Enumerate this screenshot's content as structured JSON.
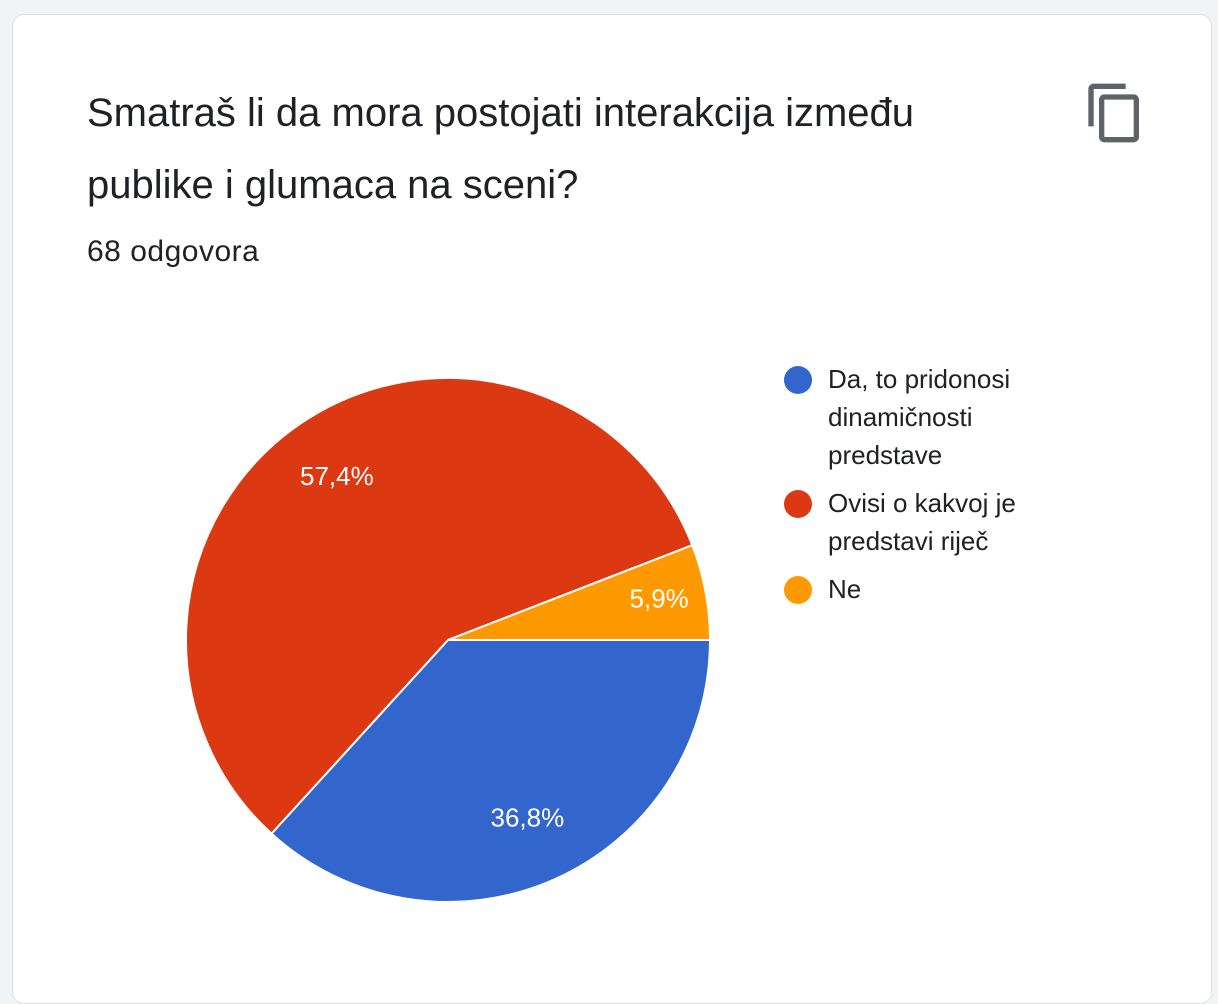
{
  "chart_data": {
    "type": "pie",
    "title": "Smatraš li da mora postojati interakcija između publike i glumaca na sceni?",
    "subtitle": "68 odgovora",
    "series": [
      {
        "name": "Da, to pridonosi dinamičnosti predstave",
        "color": "#3366cc"
      },
      {
        "name": "Ovisi o kakvoj je predstavi riječ",
        "color": "#dc3912"
      },
      {
        "name": "Ne",
        "color": "#ff9900"
      }
    ],
    "values": [
      36.8,
      57.4,
      5.9
    ],
    "value_labels": [
      "36,8%",
      "57,4%",
      "5,9%"
    ]
  }
}
